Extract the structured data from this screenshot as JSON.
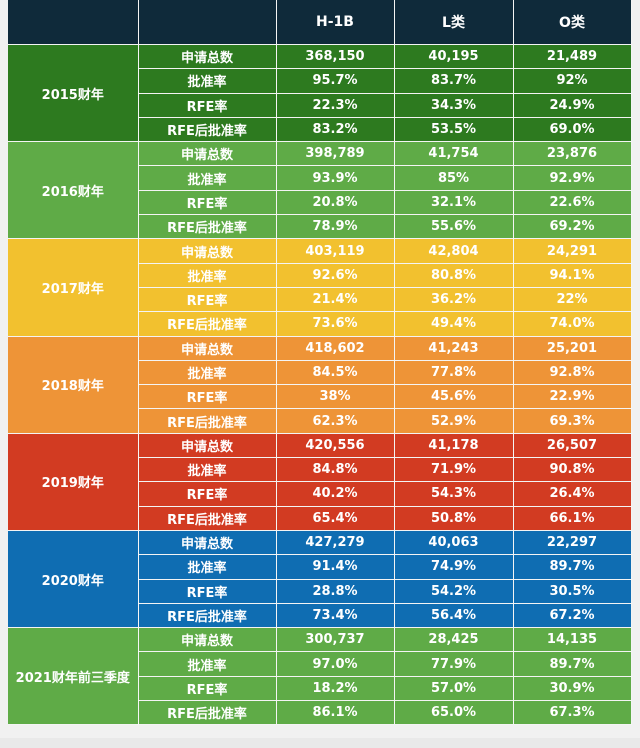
{
  "header": {
    "corner": "",
    "metric_col": "",
    "columns": [
      "H-1B",
      "L类",
      "O类"
    ]
  },
  "groups": [
    {
      "year": "2015财年",
      "color": "#2d7a1f",
      "rows": [
        {
          "metric": "申请总数",
          "values": [
            "368,150",
            "40,195",
            "21,489"
          ]
        },
        {
          "metric": "批准率",
          "values": [
            "95.7%",
            "83.7%",
            "92%"
          ]
        },
        {
          "metric": "RFE率",
          "values": [
            "22.3%",
            "34.3%",
            "24.9%"
          ]
        },
        {
          "metric": "RFE后批准率",
          "values": [
            "83.2%",
            "53.5%",
            "69.0%"
          ]
        }
      ]
    },
    {
      "year": "2016财年",
      "color": "#5fab47",
      "rows": [
        {
          "metric": "申请总数",
          "values": [
            "398,789",
            "41,754",
            "23,876"
          ]
        },
        {
          "metric": "批准率",
          "values": [
            "93.9%",
            "85%",
            "92.9%"
          ]
        },
        {
          "metric": "RFE率",
          "values": [
            "20.8%",
            "32.1%",
            "22.6%"
          ]
        },
        {
          "metric": "RFE后批准率",
          "values": [
            "78.9%",
            "55.6%",
            "69.2%"
          ]
        }
      ]
    },
    {
      "year": "2017财年",
      "color": "#f2c12f",
      "rows": [
        {
          "metric": "申请总数",
          "values": [
            "403,119",
            "42,804",
            "24,291"
          ]
        },
        {
          "metric": "批准率",
          "values": [
            "92.6%",
            "80.8%",
            "94.1%"
          ]
        },
        {
          "metric": "RFE率",
          "values": [
            "21.4%",
            "36.2%",
            "22%"
          ]
        },
        {
          "metric": "RFE后批准率",
          "values": [
            "73.6%",
            "49.4%",
            "74.0%"
          ]
        }
      ]
    },
    {
      "year": "2018财年",
      "color": "#ee9437",
      "rows": [
        {
          "metric": "申请总数",
          "values": [
            "418,602",
            "41,243",
            "25,201"
          ]
        },
        {
          "metric": "批准率",
          "values": [
            "84.5%",
            "77.8%",
            "92.8%"
          ]
        },
        {
          "metric": "RFE率",
          "values": [
            "38%",
            "45.6%",
            "22.9%"
          ]
        },
        {
          "metric": "RFE后批准率",
          "values": [
            "62.3%",
            "52.9%",
            "69.3%"
          ]
        }
      ]
    },
    {
      "year": "2019财年",
      "color": "#d23b22",
      "rows": [
        {
          "metric": "申请总数",
          "values": [
            "420,556",
            "41,178",
            "26,507"
          ]
        },
        {
          "metric": "批准率",
          "values": [
            "84.8%",
            "71.9%",
            "90.8%"
          ]
        },
        {
          "metric": "RFE率",
          "values": [
            "40.2%",
            "54.3%",
            "26.4%"
          ]
        },
        {
          "metric": "RFE后批准率",
          "values": [
            "65.4%",
            "50.8%",
            "66.1%"
          ]
        }
      ]
    },
    {
      "year": "2020财年",
      "color": "#0f6db2",
      "rows": [
        {
          "metric": "申请总数",
          "values": [
            "427,279",
            "40,063",
            "22,297"
          ]
        },
        {
          "metric": "批准率",
          "values": [
            "91.4%",
            "74.9%",
            "89.7%"
          ]
        },
        {
          "metric": "RFE率",
          "values": [
            "28.8%",
            "54.2%",
            "30.5%"
          ]
        },
        {
          "metric": "RFE后批准率",
          "values": [
            "73.4%",
            "56.4%",
            "67.2%"
          ]
        }
      ]
    },
    {
      "year": "2021财年前三季度",
      "color": "#5fab47",
      "rows": [
        {
          "metric": "申请总数",
          "values": [
            "300,737",
            "28,425",
            "14,135"
          ]
        },
        {
          "metric": "批准率",
          "values": [
            "97.0%",
            "77.9%",
            "89.7%"
          ]
        },
        {
          "metric": "RFE率",
          "values": [
            "18.2%",
            "57.0%",
            "30.9%"
          ]
        },
        {
          "metric": "RFE后批准率",
          "values": [
            "86.1%",
            "65.0%",
            "67.3%"
          ]
        }
      ]
    }
  ]
}
